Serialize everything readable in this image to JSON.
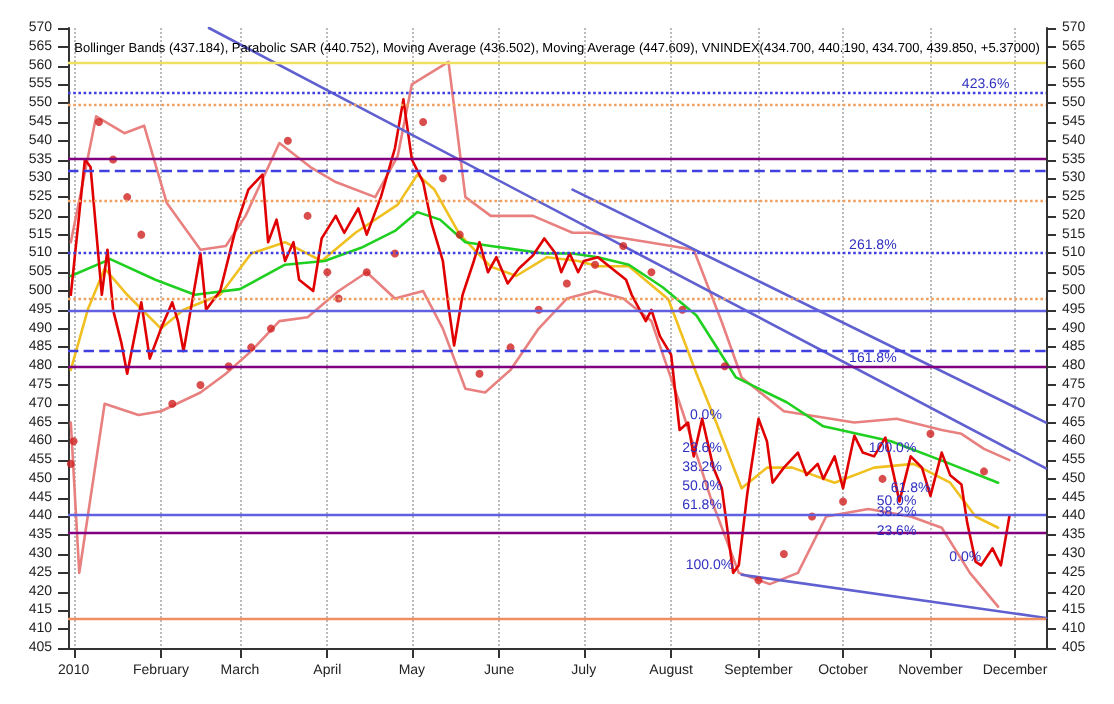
{
  "chart_data": {
    "type": "line",
    "title": "Bollinger Bands (437.184), Parabolic SAR (440.752), Moving Average (436.502), Moving Average (447.609), VNINDEX(434.700, 440.190, 434.700, 439.850, +5.37000)",
    "xlim": [
      "2009-12-30",
      "2010-12-12"
    ],
    "xticks": [
      {
        "value": "2010-01-01",
        "label": "2010"
      },
      {
        "value": "2010-02-01",
        "label": "February"
      },
      {
        "value": "2010-03-01",
        "label": "March"
      },
      {
        "value": "2010-04-01",
        "label": "April"
      },
      {
        "value": "2010-05-01",
        "label": "May"
      },
      {
        "value": "2010-06-01",
        "label": "June"
      },
      {
        "value": "2010-07-01",
        "label": "July"
      },
      {
        "value": "2010-08-01",
        "label": "August"
      },
      {
        "value": "2010-09-01",
        "label": "September"
      },
      {
        "value": "2010-10-01",
        "label": "October"
      },
      {
        "value": "2010-11-01",
        "label": "November"
      },
      {
        "value": "2010-12-01",
        "label": "December"
      }
    ],
    "ylim": [
      405,
      570
    ],
    "yticks": [
      405,
      410,
      415,
      420,
      425,
      430,
      435,
      440,
      445,
      450,
      455,
      460,
      465,
      470,
      475,
      480,
      485,
      490,
      495,
      500,
      505,
      510,
      515,
      520,
      525,
      530,
      535,
      540,
      545,
      550,
      555,
      560,
      565,
      570
    ],
    "y2lim": [
      405,
      570
    ],
    "y2ticks": [
      405,
      410,
      415,
      420,
      425,
      430,
      435,
      440,
      445,
      450,
      455,
      460,
      465,
      470,
      475,
      480,
      485,
      490,
      495,
      500,
      505,
      510,
      515,
      520,
      525,
      530,
      535,
      540,
      545,
      550,
      555,
      560,
      565,
      570
    ],
    "grid": "x",
    "marker": "none",
    "line_style": "solid",
    "series": [
      {
        "color": "#e88080",
        "x": [
          "2009-12-31",
          "2010-01-09",
          "2010-01-19",
          "2010-01-26",
          "2010-02-03",
          "2010-02-15",
          "2010-02-24",
          "2010-03-03",
          "2010-03-15",
          "2010-03-26",
          "2010-04-04",
          "2010-04-18",
          "2010-04-26",
          "2010-05-01",
          "2010-05-14",
          "2010-05-20",
          "2010-05-29",
          "2010-06-13",
          "2010-06-27",
          "2010-07-03",
          "2010-07-24",
          "2010-08-09",
          "2010-08-19",
          "2010-08-26",
          "2010-09-10",
          "2010-10-05",
          "2010-10-20",
          "2010-11-05",
          "2010-11-12",
          "2010-11-20",
          "2010-11-29"
        ],
        "values": [
          513,
          546.5,
          542,
          544,
          523.5,
          511,
          512,
          520,
          539.4,
          533,
          529,
          525,
          536,
          555,
          561,
          525,
          520,
          520,
          515.5,
          515.5,
          513,
          511,
          491.7,
          477,
          468,
          465,
          466,
          463,
          462,
          458,
          455
        ]
      },
      {
        "color": "#e88080",
        "x": [
          "2009-12-31",
          "2010-01-03",
          "2010-01-06",
          "2010-01-12",
          "2010-01-24",
          "2010-02-01",
          "2010-02-15",
          "2010-02-24",
          "2010-03-05",
          "2010-03-15",
          "2010-03-25",
          "2010-04-05",
          "2010-04-15",
          "2010-04-25",
          "2010-05-05",
          "2010-05-12",
          "2010-05-20",
          "2010-05-27",
          "2010-06-05",
          "2010-06-15",
          "2010-06-25",
          "2010-07-05",
          "2010-07-15",
          "2010-07-25",
          "2010-08-05",
          "2010-08-15",
          "2010-08-25",
          "2010-09-05",
          "2010-09-15",
          "2010-09-25",
          "2010-10-10",
          "2010-10-25",
          "2010-11-05",
          "2010-11-15",
          "2010-11-25"
        ],
        "values": [
          465,
          425,
          440,
          470,
          467,
          468,
          473,
          478,
          484,
          492,
          493,
          500,
          505,
          498,
          500,
          490,
          474,
          473,
          479,
          490,
          498,
          500,
          498,
          492,
          468,
          445,
          425,
          422,
          425,
          440,
          442,
          440,
          437,
          425,
          416
        ]
      },
      {
        "type": "scatter",
        "marker": "circle",
        "color": "#d02020",
        "x": [
          "2009-12-31",
          "2010-01-01",
          "2010-01-10",
          "2010-01-15",
          "2010-01-20",
          "2010-01-25",
          "2010-02-05",
          "2010-02-15",
          "2010-02-25",
          "2010-03-05",
          "2010-03-12",
          "2010-03-18",
          "2010-03-25",
          "2010-04-01",
          "2010-04-05",
          "2010-04-15",
          "2010-04-25",
          "2010-05-05",
          "2010-05-12",
          "2010-05-18",
          "2010-05-25",
          "2010-06-05",
          "2010-06-15",
          "2010-06-25",
          "2010-07-05",
          "2010-07-15",
          "2010-07-25",
          "2010-08-05",
          "2010-08-20",
          "2010-09-01",
          "2010-09-10",
          "2010-09-20",
          "2010-10-01",
          "2010-10-15",
          "2010-11-01",
          "2010-11-20"
        ],
        "values": [
          454,
          460,
          545,
          535,
          525,
          515,
          470,
          475,
          480,
          485,
          490,
          540,
          520,
          505,
          498,
          505,
          510,
          545,
          530,
          515,
          478,
          485,
          495,
          502,
          507,
          512,
          505,
          495,
          480,
          423,
          430,
          440,
          444,
          450,
          462,
          452
        ]
      },
      {
        "color": "#f0c020",
        "x": [
          "2009-12-31",
          "2010-01-06",
          "2010-01-12",
          "2010-01-20",
          "2010-02-01",
          "2010-02-09",
          "2010-02-22",
          "2010-03-05",
          "2010-03-17",
          "2010-03-30",
          "2010-04-11",
          "2010-04-26",
          "2010-05-03",
          "2010-05-09",
          "2010-05-18",
          "2010-05-29",
          "2010-06-07",
          "2010-06-18",
          "2010-06-29",
          "2010-07-06",
          "2010-07-17",
          "2010-07-31",
          "2010-08-10",
          "2010-08-17",
          "2010-08-26",
          "2010-09-04",
          "2010-09-13",
          "2010-09-28",
          "2010-10-12",
          "2010-10-26",
          "2010-11-08",
          "2010-11-17",
          "2010-11-25"
        ],
        "values": [
          479,
          495,
          506,
          499,
          490,
          495,
          499,
          510,
          513,
          508,
          515.5,
          523,
          531,
          527,
          515,
          506.5,
          504,
          509,
          508,
          506.6,
          506.6,
          497.8,
          478,
          465,
          447.5,
          453,
          453,
          449,
          453,
          454,
          449,
          440,
          437
        ]
      },
      {
        "color": "#20d020",
        "x": [
          "2009-12-31",
          "2010-01-14",
          "2010-01-30",
          "2010-02-13",
          "2010-03-01",
          "2010-03-17",
          "2010-03-31",
          "2010-04-13",
          "2010-04-25",
          "2010-05-03",
          "2010-05-11",
          "2010-05-20",
          "2010-05-29",
          "2010-06-17",
          "2010-06-27",
          "2010-07-06",
          "2010-07-17",
          "2010-07-29",
          "2010-08-10",
          "2010-08-24",
          "2010-09-11",
          "2010-09-24",
          "2010-10-18",
          "2010-11-06",
          "2010-11-25"
        ],
        "values": [
          504,
          508.5,
          503,
          499,
          500.5,
          507,
          508,
          511.5,
          516,
          521,
          519,
          513,
          512,
          510,
          510,
          509,
          507,
          501,
          493.5,
          477,
          470.4,
          464,
          460,
          454.6,
          449
        ]
      },
      {
        "color": "#e00000",
        "x": [
          "2009-12-31",
          "2010-01-05",
          "2010-01-07",
          "2010-01-09",
          "2010-01-11",
          "2010-01-13",
          "2010-01-15",
          "2010-01-18",
          "2010-01-20",
          "2010-01-25",
          "2010-01-28",
          "2010-02-01",
          "2010-02-05",
          "2010-02-07",
          "2010-02-09",
          "2010-02-15",
          "2010-02-17",
          "2010-02-22",
          "2010-02-28",
          "2010-03-04",
          "2010-03-09",
          "2010-03-11",
          "2010-03-14",
          "2010-03-17",
          "2010-03-20",
          "2010-03-22",
          "2010-03-27",
          "2010-03-30",
          "2010-04-04",
          "2010-04-07",
          "2010-04-12",
          "2010-04-15",
          "2010-04-20",
          "2010-04-25",
          "2010-04-28",
          "2010-05-01",
          "2010-05-05",
          "2010-05-08",
          "2010-05-12",
          "2010-05-14",
          "2010-05-16",
          "2010-05-19",
          "2010-05-23",
          "2010-05-25",
          "2010-05-28",
          "2010-05-31",
          "2010-06-04",
          "2010-06-08",
          "2010-06-13",
          "2010-06-17",
          "2010-06-21",
          "2010-06-23",
          "2010-06-26",
          "2010-06-29",
          "2010-07-01",
          "2010-07-06",
          "2010-07-11",
          "2010-07-16",
          "2010-07-18",
          "2010-07-23",
          "2010-07-25",
          "2010-07-28",
          "2010-08-01",
          "2010-08-04",
          "2010-08-07",
          "2010-08-09",
          "2010-08-12",
          "2010-08-16",
          "2010-08-19",
          "2010-08-23",
          "2010-08-25",
          "2010-08-28",
          "2010-09-01",
          "2010-09-04",
          "2010-09-06",
          "2010-09-10",
          "2010-09-15",
          "2010-09-18",
          "2010-09-22",
          "2010-09-24",
          "2010-09-28",
          "2010-10-01",
          "2010-10-05",
          "2010-10-08",
          "2010-10-12",
          "2010-10-16",
          "2010-10-19",
          "2010-10-21",
          "2010-10-25",
          "2010-10-29",
          "2010-11-01",
          "2010-11-05",
          "2010-11-08",
          "2010-11-12",
          "2010-11-14",
          "2010-11-17",
          "2010-11-19",
          "2010-11-23",
          "2010-11-26",
          "2010-11-29"
        ],
        "values": [
          499,
          535,
          533,
          516,
          499,
          511,
          495,
          486,
          478,
          497,
          482,
          490,
          497,
          492,
          484,
          510,
          495,
          500,
          518,
          527,
          531,
          513,
          519,
          508,
          513,
          503,
          500,
          514,
          520,
          515.5,
          522,
          515,
          525,
          538,
          551,
          535,
          529,
          518,
          508,
          496,
          485.5,
          499,
          508,
          513,
          505,
          509,
          502,
          506,
          509.5,
          514,
          510,
          505,
          510,
          505,
          508,
          509,
          506,
          503,
          499,
          492,
          495,
          488,
          483,
          463,
          465,
          456,
          466,
          453,
          447.5,
          425,
          427,
          446,
          466,
          460,
          449,
          453,
          457,
          451,
          454,
          450,
          456,
          447.5,
          461.5,
          457,
          456,
          461,
          451,
          444,
          456,
          453,
          445.5,
          457,
          451,
          448.5,
          438.5,
          428,
          427,
          431.5,
          427,
          440
        ]
      },
      {
        "color": "#6060d0",
        "x": [
          "2010-02-18",
          "2010-12-12"
        ],
        "values": [
          570,
          452.8
        ]
      },
      {
        "color": "#6060d0",
        "x": [
          "2010-06-27",
          "2010-12-12"
        ],
        "values": [
          527,
          465
        ]
      },
      {
        "color": "#6060d0",
        "x": [
          "2010-08-26",
          "2010-12-12"
        ],
        "values": [
          424.5,
          413
        ]
      }
    ],
    "ref_lines": [
      {
        "axis": "y",
        "value": 561,
        "color": "#f0e060",
        "line_style": "solid"
      },
      {
        "axis": "y",
        "value": 553,
        "color": "#4040e0",
        "line_style": "dotted"
      },
      {
        "axis": "y",
        "value": 549.5,
        "color": "#f0a060",
        "line_style": "dotted"
      },
      {
        "axis": "y",
        "value": 535.5,
        "color": "#800080",
        "line_style": "solid"
      },
      {
        "axis": "y",
        "value": 532,
        "color": "#4040e0",
        "line_style": "dashed"
      },
      {
        "axis": "y",
        "value": 524,
        "color": "#f0a060",
        "line_style": "dotted"
      },
      {
        "axis": "y",
        "value": 510,
        "color": "#4040e0",
        "line_style": "dotted"
      },
      {
        "axis": "y",
        "value": 498,
        "color": "#f0a060",
        "line_style": "dotted"
      },
      {
        "axis": "y",
        "value": 495,
        "color": "#6060e0",
        "line_style": "solid"
      },
      {
        "axis": "y",
        "value": 484,
        "color": "#4040e0",
        "line_style": "dashed"
      },
      {
        "axis": "y",
        "value": 480,
        "color": "#800080",
        "line_style": "solid"
      },
      {
        "axis": "y",
        "value": 440.5,
        "color": "#6060e0",
        "line_style": "solid"
      },
      {
        "axis": "y",
        "value": 435.5,
        "color": "#800080",
        "line_style": "solid"
      },
      {
        "axis": "y",
        "value": 413,
        "color": "#f09060",
        "line_style": "solid"
      }
    ],
    "annotations": [
      {
        "text": "423.6%",
        "x": "2010-11-29",
        "y": 553
      },
      {
        "text": "261.8%",
        "x": "2010-10-20",
        "y": 510
      },
      {
        "text": "161.8%",
        "x": "2010-10-20",
        "y": 480
      },
      {
        "text": "0.0%",
        "x": "2010-08-19",
        "y": 465
      },
      {
        "text": "23.6%",
        "x": "2010-08-19",
        "y": 456
      },
      {
        "text": "38.2%",
        "x": "2010-08-19",
        "y": 451
      },
      {
        "text": "50.0%",
        "x": "2010-08-19",
        "y": 446
      },
      {
        "text": "61.8%",
        "x": "2010-08-19",
        "y": 441
      },
      {
        "text": "100.0%",
        "x": "2010-08-23",
        "y": 425
      },
      {
        "text": "100.0%",
        "x": "2010-10-27",
        "y": 456
      },
      {
        "text": "61.8%",
        "x": "2010-11-01",
        "y": 445.5
      },
      {
        "text": "50.0%",
        "x": "2010-10-27",
        "y": 442
      },
      {
        "text": "38.2%",
        "x": "2010-10-27",
        "y": 439
      },
      {
        "text": "23.6%",
        "x": "2010-10-27",
        "y": 434
      },
      {
        "text": "0.0%",
        "x": "2010-11-19",
        "y": 427
      }
    ]
  }
}
